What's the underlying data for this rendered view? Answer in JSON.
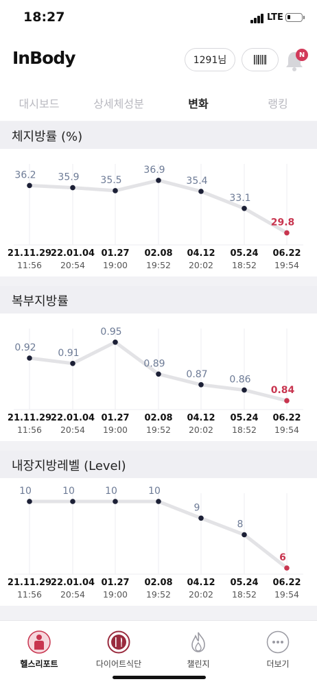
{
  "status_bar": {
    "time": "18:27",
    "network": "LTE"
  },
  "header": {
    "logo": "InBody",
    "user_label": "1291님",
    "notification_badge": "N"
  },
  "tabs": [
    {
      "label": "대시보드",
      "active": false
    },
    {
      "label": "상세체성분",
      "active": false
    },
    {
      "label": "변화",
      "active": true
    },
    {
      "label": "랭킹",
      "active": false
    }
  ],
  "sections": [
    {
      "title": "체지방률 (%)"
    },
    {
      "title": "복부지방률"
    },
    {
      "title": "내장지방레벨 (Level)"
    }
  ],
  "chart_data": [
    {
      "type": "line",
      "title": "체지방률 (%)",
      "x": [
        "21.11.29",
        "22.01.04",
        "01.27",
        "02.08",
        "04.12",
        "05.24",
        "06.22"
      ],
      "x_times": [
        "11:56",
        "20:54",
        "19:00",
        "19:52",
        "20:02",
        "18:52",
        "19:54"
      ],
      "series": [
        {
          "values": [
            36.2,
            35.9,
            35.5,
            36.9,
            35.4,
            33.1,
            29.8
          ]
        }
      ],
      "value_labels": [
        "36.2",
        "35.9",
        "35.5",
        "36.9",
        "35.4",
        "33.1",
        "29.8"
      ],
      "highlight_last": true,
      "grid": "vertical",
      "ylim": [
        29.0,
        38.0
      ]
    },
    {
      "type": "line",
      "title": "복부지방률",
      "x": [
        "21.11.29",
        "22.01.04",
        "01.27",
        "02.08",
        "04.12",
        "05.24",
        "06.22"
      ],
      "x_times": [
        "11:56",
        "20:54",
        "19:00",
        "19:52",
        "20:02",
        "18:52",
        "19:54"
      ],
      "series": [
        {
          "values": [
            0.92,
            0.91,
            0.95,
            0.89,
            0.87,
            0.86,
            0.84
          ]
        }
      ],
      "value_labels": [
        "0.92",
        "0.91",
        "0.95",
        "0.89",
        "0.87",
        "0.86",
        "0.84"
      ],
      "highlight_last": true,
      "grid": "vertical",
      "ylim": [
        0.835,
        0.96
      ]
    },
    {
      "type": "line",
      "title": "내장지방레벨 (Level)",
      "x": [
        "21.11.29",
        "22.01.04",
        "01.27",
        "02.08",
        "04.12",
        "05.24",
        "06.22"
      ],
      "x_times": [
        "11:56",
        "20:54",
        "19:00",
        "19:52",
        "20:02",
        "18:52",
        "19:54"
      ],
      "series": [
        {
          "values": [
            10,
            10,
            10,
            10,
            9,
            8,
            6
          ]
        }
      ],
      "value_labels": [
        "10",
        "10",
        "10",
        "10",
        "9",
        "8",
        "6"
      ],
      "highlight_last": true,
      "grid": "vertical",
      "ylim": [
        6,
        10
      ]
    }
  ],
  "bottom_nav": [
    {
      "label": "헬스리포트",
      "icon": "body-report-icon",
      "active": true
    },
    {
      "label": "다이어트식단",
      "icon": "diet-plate-icon",
      "active": false
    },
    {
      "label": "챌린지",
      "icon": "flame-icon",
      "active": false
    },
    {
      "label": "더보기",
      "icon": "more-dots-icon",
      "active": false
    }
  ],
  "colors": {
    "accent_red": "#c8354f",
    "line_gray": "#e3e3e6",
    "point_navy": "#1c2036",
    "value_label": "#6c7a95",
    "grid": "#ededf0"
  }
}
